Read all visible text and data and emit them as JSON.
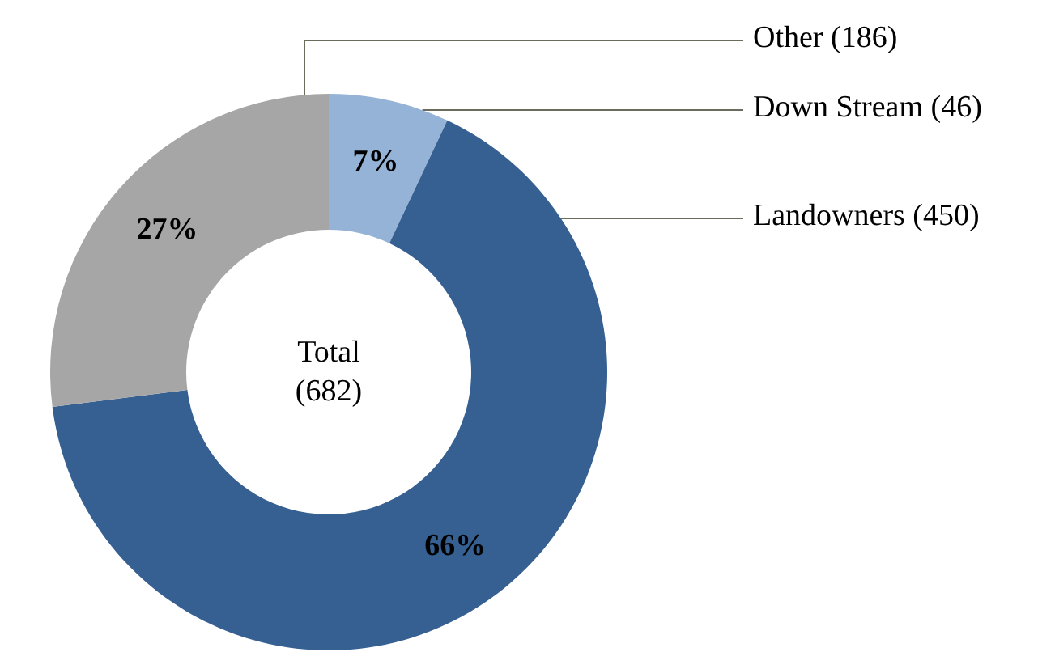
{
  "chart_data": {
    "type": "donut",
    "categories": [
      "Down Stream (46)",
      "Landowners (450)",
      "Other (186)"
    ],
    "values": [
      7,
      66,
      27
    ],
    "colors": [
      "#95b3d7",
      "#376092",
      "#a6a6a6"
    ],
    "value_labels": [
      "7%",
      "66%",
      "27%"
    ],
    "annotations": [
      "Total\n(682)"
    ],
    "legend": false
  }
}
